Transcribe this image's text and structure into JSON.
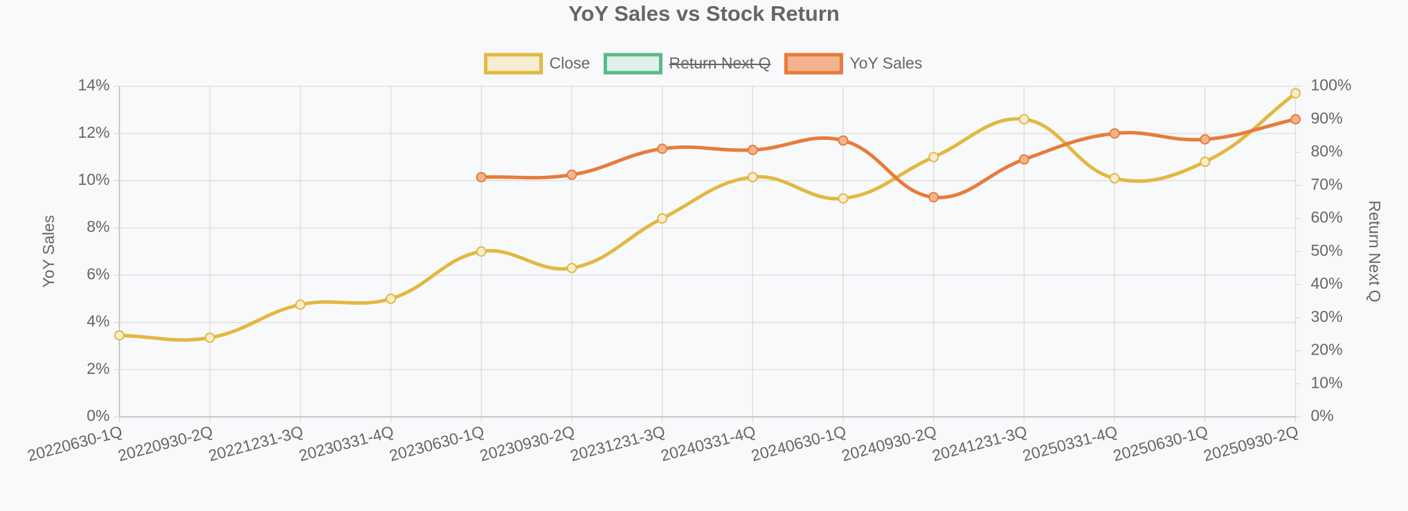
{
  "chart_data": {
    "type": "line",
    "title": "YoY Sales vs Stock Return",
    "categories": [
      "20220630-1Q",
      "20220930-2Q",
      "20221231-3Q",
      "20230331-4Q",
      "20230630-1Q",
      "20230930-2Q",
      "20231231-3Q",
      "20240331-4Q",
      "20240630-1Q",
      "20240930-2Q",
      "20241231-3Q",
      "20250331-4Q",
      "20250630-1Q",
      "20250930-2Q"
    ],
    "series": [
      {
        "name": "Close",
        "color": "#e3b841",
        "fill": "#f6ecd0",
        "values": [
          3.45,
          3.35,
          4.75,
          5.0,
          7.0,
          6.3,
          8.4,
          10.15,
          9.25,
          11.0,
          12.6,
          10.1,
          10.8,
          13.7
        ]
      },
      {
        "name": "Return Next Q",
        "color": "#5bb88a",
        "fill": "#dff1e8",
        "axis": "y2",
        "hidden": true,
        "values": [
          null,
          null,
          null,
          null,
          null,
          null,
          null,
          null,
          null,
          null,
          null,
          null,
          null,
          null
        ]
      },
      {
        "name": "YoY Sales",
        "color": "#e87b3a",
        "fill": "#f2b48f",
        "values": [
          null,
          null,
          null,
          null,
          10.15,
          10.25,
          11.35,
          11.3,
          11.7,
          9.3,
          10.9,
          12.0,
          11.75,
          12.6
        ]
      }
    ],
    "ylabel": "YoY Sales",
    "y2label": "Return Next Q",
    "ylim": [
      0,
      14
    ],
    "yticks": [
      {
        "value": 0,
        "label": "0%"
      },
      {
        "value": 2,
        "label": "2%"
      },
      {
        "value": 4,
        "label": "4%"
      },
      {
        "value": 6,
        "label": "6%"
      },
      {
        "value": 8,
        "label": "8%"
      },
      {
        "value": 10,
        "label": "10%"
      },
      {
        "value": 12,
        "label": "12%"
      },
      {
        "value": 14,
        "label": "14%"
      }
    ],
    "y2lim": [
      0,
      100
    ],
    "y2ticks": [
      {
        "value": 0,
        "label": "0%"
      },
      {
        "value": 10,
        "label": "10%"
      },
      {
        "value": 20,
        "label": "20%"
      },
      {
        "value": 30,
        "label": "30%"
      },
      {
        "value": 40,
        "label": "40%"
      },
      {
        "value": 50,
        "label": "50%"
      },
      {
        "value": 60,
        "label": "60%"
      },
      {
        "value": 70,
        "label": "70%"
      },
      {
        "value": 80,
        "label": "80%"
      },
      {
        "value": 90,
        "label": "90%"
      },
      {
        "value": 100,
        "label": "100%"
      }
    ],
    "grid": true,
    "legend": "top"
  }
}
